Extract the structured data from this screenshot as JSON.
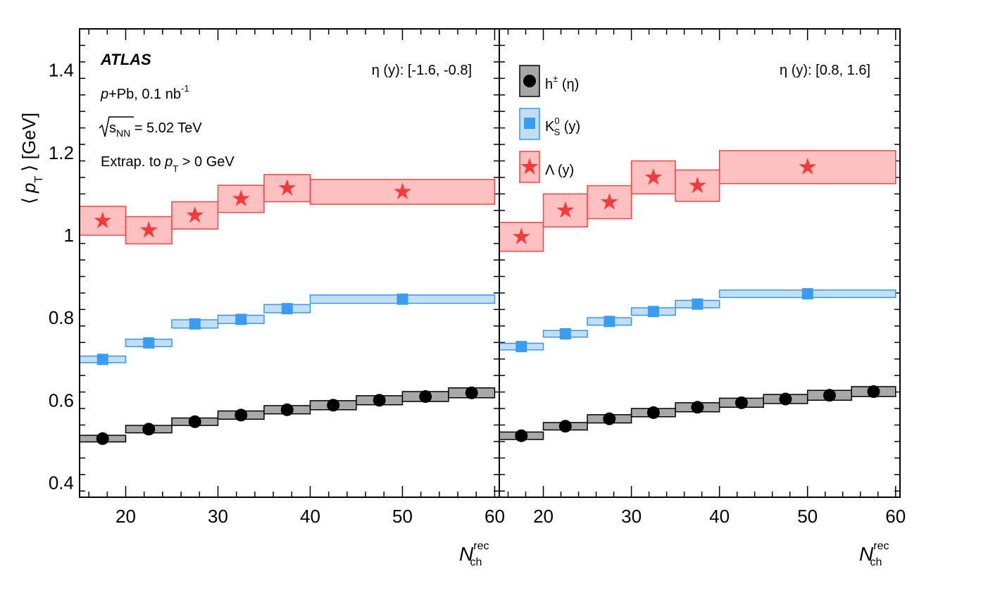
{
  "chart_data": {
    "type": "scatter",
    "y_axis": {
      "label_open": "⟨",
      "label_var": "p",
      "label_sub": "T",
      "label_close": "⟩ [GeV]",
      "ylim": [
        0.365,
        1.5
      ],
      "tick_values": [
        0.4,
        0.6,
        0.8,
        1.0,
        1.2,
        1.4
      ],
      "tick_labels": [
        "0.4",
        "0.6",
        "0.8",
        "1",
        "1.2",
        "1.4"
      ]
    },
    "x_axis": {
      "label_var": "N",
      "label_sup": "rec",
      "label_sub": "ch",
      "xlim": [
        15,
        60.5
      ],
      "tick_values": [
        20,
        30,
        40,
        50,
        60
      ],
      "tick_labels": [
        "20",
        "30",
        "40",
        "50",
        "60"
      ]
    },
    "annotations": {
      "experiment": "ATLAS",
      "system_p": "p",
      "system_rest": "+Pb, 0.1 nb",
      "system_sup": "-1",
      "energy_var": "s",
      "energy_sub": "NN",
      "energy_rest": " = 5.02 TeV",
      "extrap_text": "Extrap. to ",
      "extrap_var": "p",
      "extrap_sub": "T",
      "extrap_rest": " > 0 GeV"
    },
    "panels": [
      {
        "label": "η (y): [-1.6, -0.8]",
        "series": [
          {
            "name": "h± (η)",
            "bins": [
              [
                15,
                20
              ],
              [
                20,
                25
              ],
              [
                25,
                30
              ],
              [
                30,
                35
              ],
              [
                35,
                40
              ],
              [
                40,
                45
              ],
              [
                45,
                50
              ],
              [
                50,
                55
              ],
              [
                55,
                60
              ]
            ],
            "x": [
              17.5,
              22.5,
              27.5,
              32.5,
              37.5,
              42.5,
              47.5,
              52.5,
              57.5
            ],
            "y": [
              0.507,
              0.53,
              0.548,
              0.564,
              0.577,
              0.588,
              0.6,
              0.609,
              0.618
            ],
            "syst": [
              0.008,
              0.009,
              0.009,
              0.01,
              0.01,
              0.011,
              0.011,
              0.012,
              0.012
            ]
          },
          {
            "name": "K0S (y)",
            "bins": [
              [
                15,
                20
              ],
              [
                20,
                25
              ],
              [
                25,
                30
              ],
              [
                30,
                35
              ],
              [
                35,
                40
              ],
              [
                40,
                60
              ]
            ],
            "x": [
              17.5,
              22.5,
              27.5,
              32.5,
              37.5,
              50
            ],
            "y": [
              0.699,
              0.739,
              0.785,
              0.796,
              0.822,
              0.845
            ],
            "syst": [
              0.008,
              0.009,
              0.01,
              0.01,
              0.01,
              0.01
            ]
          },
          {
            "name": "Λ (y)",
            "bins": [
              [
                15,
                20
              ],
              [
                20,
                25
              ],
              [
                25,
                30
              ],
              [
                30,
                35
              ],
              [
                35,
                40
              ],
              [
                40,
                60
              ]
            ],
            "x": [
              17.5,
              22.5,
              27.5,
              32.5,
              37.5,
              50
            ],
            "y": [
              1.035,
              1.012,
              1.048,
              1.088,
              1.114,
              1.105
            ],
            "syst": [
              0.035,
              0.033,
              0.033,
              0.033,
              0.033,
              0.03
            ]
          }
        ]
      },
      {
        "label": "η (y): [0.8, 1.6]",
        "series": [
          {
            "name": "h± (η)",
            "bins": [
              [
                15,
                20
              ],
              [
                20,
                25
              ],
              [
                25,
                30
              ],
              [
                30,
                35
              ],
              [
                35,
                40
              ],
              [
                40,
                45
              ],
              [
                45,
                50
              ],
              [
                50,
                55
              ],
              [
                55,
                60
              ]
            ],
            "x": [
              17.5,
              22.5,
              27.5,
              32.5,
              37.5,
              42.5,
              47.5,
              52.5,
              57.5
            ],
            "y": [
              0.514,
              0.537,
              0.555,
              0.57,
              0.583,
              0.594,
              0.603,
              0.612,
              0.621
            ],
            "syst": [
              0.009,
              0.009,
              0.01,
              0.01,
              0.011,
              0.011,
              0.011,
              0.012,
              0.012
            ]
          },
          {
            "name": "K0S (y)",
            "bins": [
              [
                15,
                20
              ],
              [
                20,
                25
              ],
              [
                25,
                30
              ],
              [
                30,
                35
              ],
              [
                35,
                40
              ],
              [
                40,
                60
              ]
            ],
            "x": [
              17.5,
              22.5,
              27.5,
              32.5,
              37.5,
              50
            ],
            "y": [
              0.73,
              0.761,
              0.791,
              0.815,
              0.833,
              0.858
            ],
            "syst": [
              0.008,
              0.008,
              0.009,
              0.009,
              0.009,
              0.009
            ]
          },
          {
            "name": "Λ (y)",
            "bins": [
              [
                15,
                20
              ],
              [
                20,
                25
              ],
              [
                25,
                30
              ],
              [
                30,
                35
              ],
              [
                35,
                40
              ],
              [
                40,
                60
              ]
            ],
            "x": [
              17.5,
              22.5,
              27.5,
              32.5,
              37.5,
              50
            ],
            "y": [
              0.996,
              1.06,
              1.08,
              1.14,
              1.12,
              1.165
            ],
            "syst": [
              0.035,
              0.04,
              0.04,
              0.04,
              0.038,
              0.04
            ]
          }
        ]
      }
    ],
    "legend": [
      {
        "main": "h",
        "sup": "±",
        "sub": "",
        "rest": " (η)",
        "marker": "circle"
      },
      {
        "main": "K",
        "sup": "0",
        "sub": "S",
        "rest": " (y)",
        "marker": "square"
      },
      {
        "main": "Λ",
        "sup": "",
        "sub": "",
        "rest": " (y)",
        "marker": "star"
      }
    ],
    "colors": {
      "h_fill": "#a8a8a8",
      "h_line": "#000000",
      "h_marker": "#000000",
      "k_fill": "#c3dff6",
      "k_line": "#3a96e6",
      "k_marker": "#3a9cf0",
      "l_fill": "#fdc0c0",
      "l_line": "#f04646",
      "l_marker": "#f23c3c"
    }
  }
}
